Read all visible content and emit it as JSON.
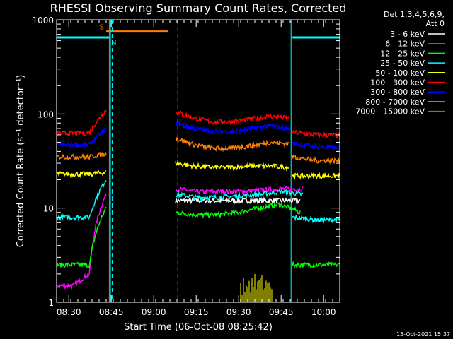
{
  "chart_data": {
    "type": "line",
    "title": "RHESSI Observing Summary Count Rates, Corrected",
    "xlabel": "Start Time (06-Oct-08 08:25:42)",
    "ylabel": "Corrected Count Rate (s⁻¹ detector⁻¹)",
    "yscale": "log",
    "ylim": [
      1,
      1000
    ],
    "xlim_minutes": [
      0,
      100
    ],
    "yticks": [
      {
        "value": 1,
        "label": "1"
      },
      {
        "value": 10,
        "label": "10"
      },
      {
        "value": 100,
        "label": "100"
      },
      {
        "value": 1000,
        "label": "1000"
      }
    ],
    "xticks": [
      {
        "minute": 4.3,
        "label": "08:30"
      },
      {
        "minute": 19.3,
        "label": "08:45"
      },
      {
        "minute": 34.3,
        "label": "09:00"
      },
      {
        "minute": 49.3,
        "label": "09:15"
      },
      {
        "minute": 64.3,
        "label": "09:30"
      },
      {
        "minute": 79.3,
        "label": "09:45"
      },
      {
        "minute": 94.3,
        "label": "10:00"
      }
    ],
    "legend": {
      "header1": "Det 1,3,4,5,6,9,",
      "header2": "Att 0",
      "position": "right"
    },
    "series": [
      {
        "name": "3 - 6 keV",
        "color": "#ffffff",
        "seg1": [],
        "seg2": [
          12,
          12,
          12,
          12,
          12,
          12,
          12
        ],
        "seg2_end": 86
      },
      {
        "name": "6 - 12 keV",
        "color": "#ff00ff",
        "seg1": [
          1.5,
          1.5,
          2,
          14
        ],
        "seg2": [
          16,
          15,
          15,
          15,
          15.5,
          16,
          16
        ],
        "seg2_end": 87
      },
      {
        "name": "12 - 25 keV",
        "color": "#00ff00",
        "seg1": [
          2.5,
          2.5,
          2.5,
          10
        ],
        "seg2": [
          9,
          8.5,
          8.5,
          9,
          10,
          11,
          9
        ],
        "seg2_end": 86,
        "seg3": [
          2.5,
          2.5,
          2.5
        ]
      },
      {
        "name": "25 - 50 keV",
        "color": "#00ffff",
        "seg1": [
          8,
          8,
          8,
          20
        ],
        "seg2": [
          14,
          13,
          13,
          13.5,
          14,
          15,
          14
        ],
        "seg2_end": 87,
        "seg3": [
          8,
          7.5,
          7.5
        ]
      },
      {
        "name": "50 - 100 keV",
        "color": "#ffff00",
        "seg1": [
          23,
          23,
          23,
          24
        ],
        "seg2": [
          30,
          28,
          27,
          27,
          28,
          28,
          27
        ],
        "seg2_end": 82,
        "seg3": [
          22,
          22,
          22
        ]
      },
      {
        "name": "100 - 300 keV",
        "color": "#ff0000",
        "seg1": [
          62,
          62,
          63,
          110
        ],
        "seg2": [
          105,
          90,
          82,
          83,
          88,
          95,
          90
        ],
        "seg2_end": 82,
        "seg3": [
          64,
          60,
          59
        ]
      },
      {
        "name": "300 - 800 keV",
        "color": "#0000ff",
        "seg1": [
          47,
          47,
          47,
          70
        ],
        "seg2": [
          80,
          70,
          65,
          65,
          70,
          75,
          70
        ],
        "seg2_end": 82,
        "seg3": [
          48,
          45,
          43
        ]
      },
      {
        "name": "800 - 7000 keV",
        "color": "#ff8000",
        "seg1": [
          35,
          35,
          35,
          38
        ],
        "seg2": [
          55,
          47,
          43,
          43,
          46,
          50,
          48
        ],
        "seg2_end": 82,
        "seg3": [
          35,
          32,
          32
        ]
      },
      {
        "name": "7000 - 15000 keV",
        "color": "#808000",
        "seg1": [],
        "seg2": [],
        "seg2_end": 0,
        "burst": {
          "start": 65,
          "end": 76,
          "value": 2
        }
      }
    ],
    "flags": [
      {
        "label": "S",
        "color": "#ff8000",
        "start": 17.5,
        "end": 39.5,
        "value": 750
      },
      {
        "label": "N",
        "color": "#00ffff",
        "start": 0,
        "end": 18.5,
        "value": 650
      },
      {
        "label": "",
        "color": "#00ffff",
        "start": 83.3,
        "end": 100,
        "value": 650
      }
    ],
    "vlines": [
      {
        "minute": 18.6,
        "color": "#ff8000",
        "style": "solid"
      },
      {
        "minute": 19.0,
        "color": "#00ffff",
        "style": "solid"
      },
      {
        "minute": 19.6,
        "color": "#00ffff",
        "style": "dashed"
      },
      {
        "minute": 42.8,
        "color": "#ff8000",
        "style": "dashed"
      },
      {
        "minute": 82.8,
        "color": "#00ffff",
        "style": "solid"
      },
      {
        "minute": 100.0,
        "color": "#00ffff",
        "style": "dashed"
      }
    ],
    "footer": "15-Oct-2021 15:37"
  }
}
